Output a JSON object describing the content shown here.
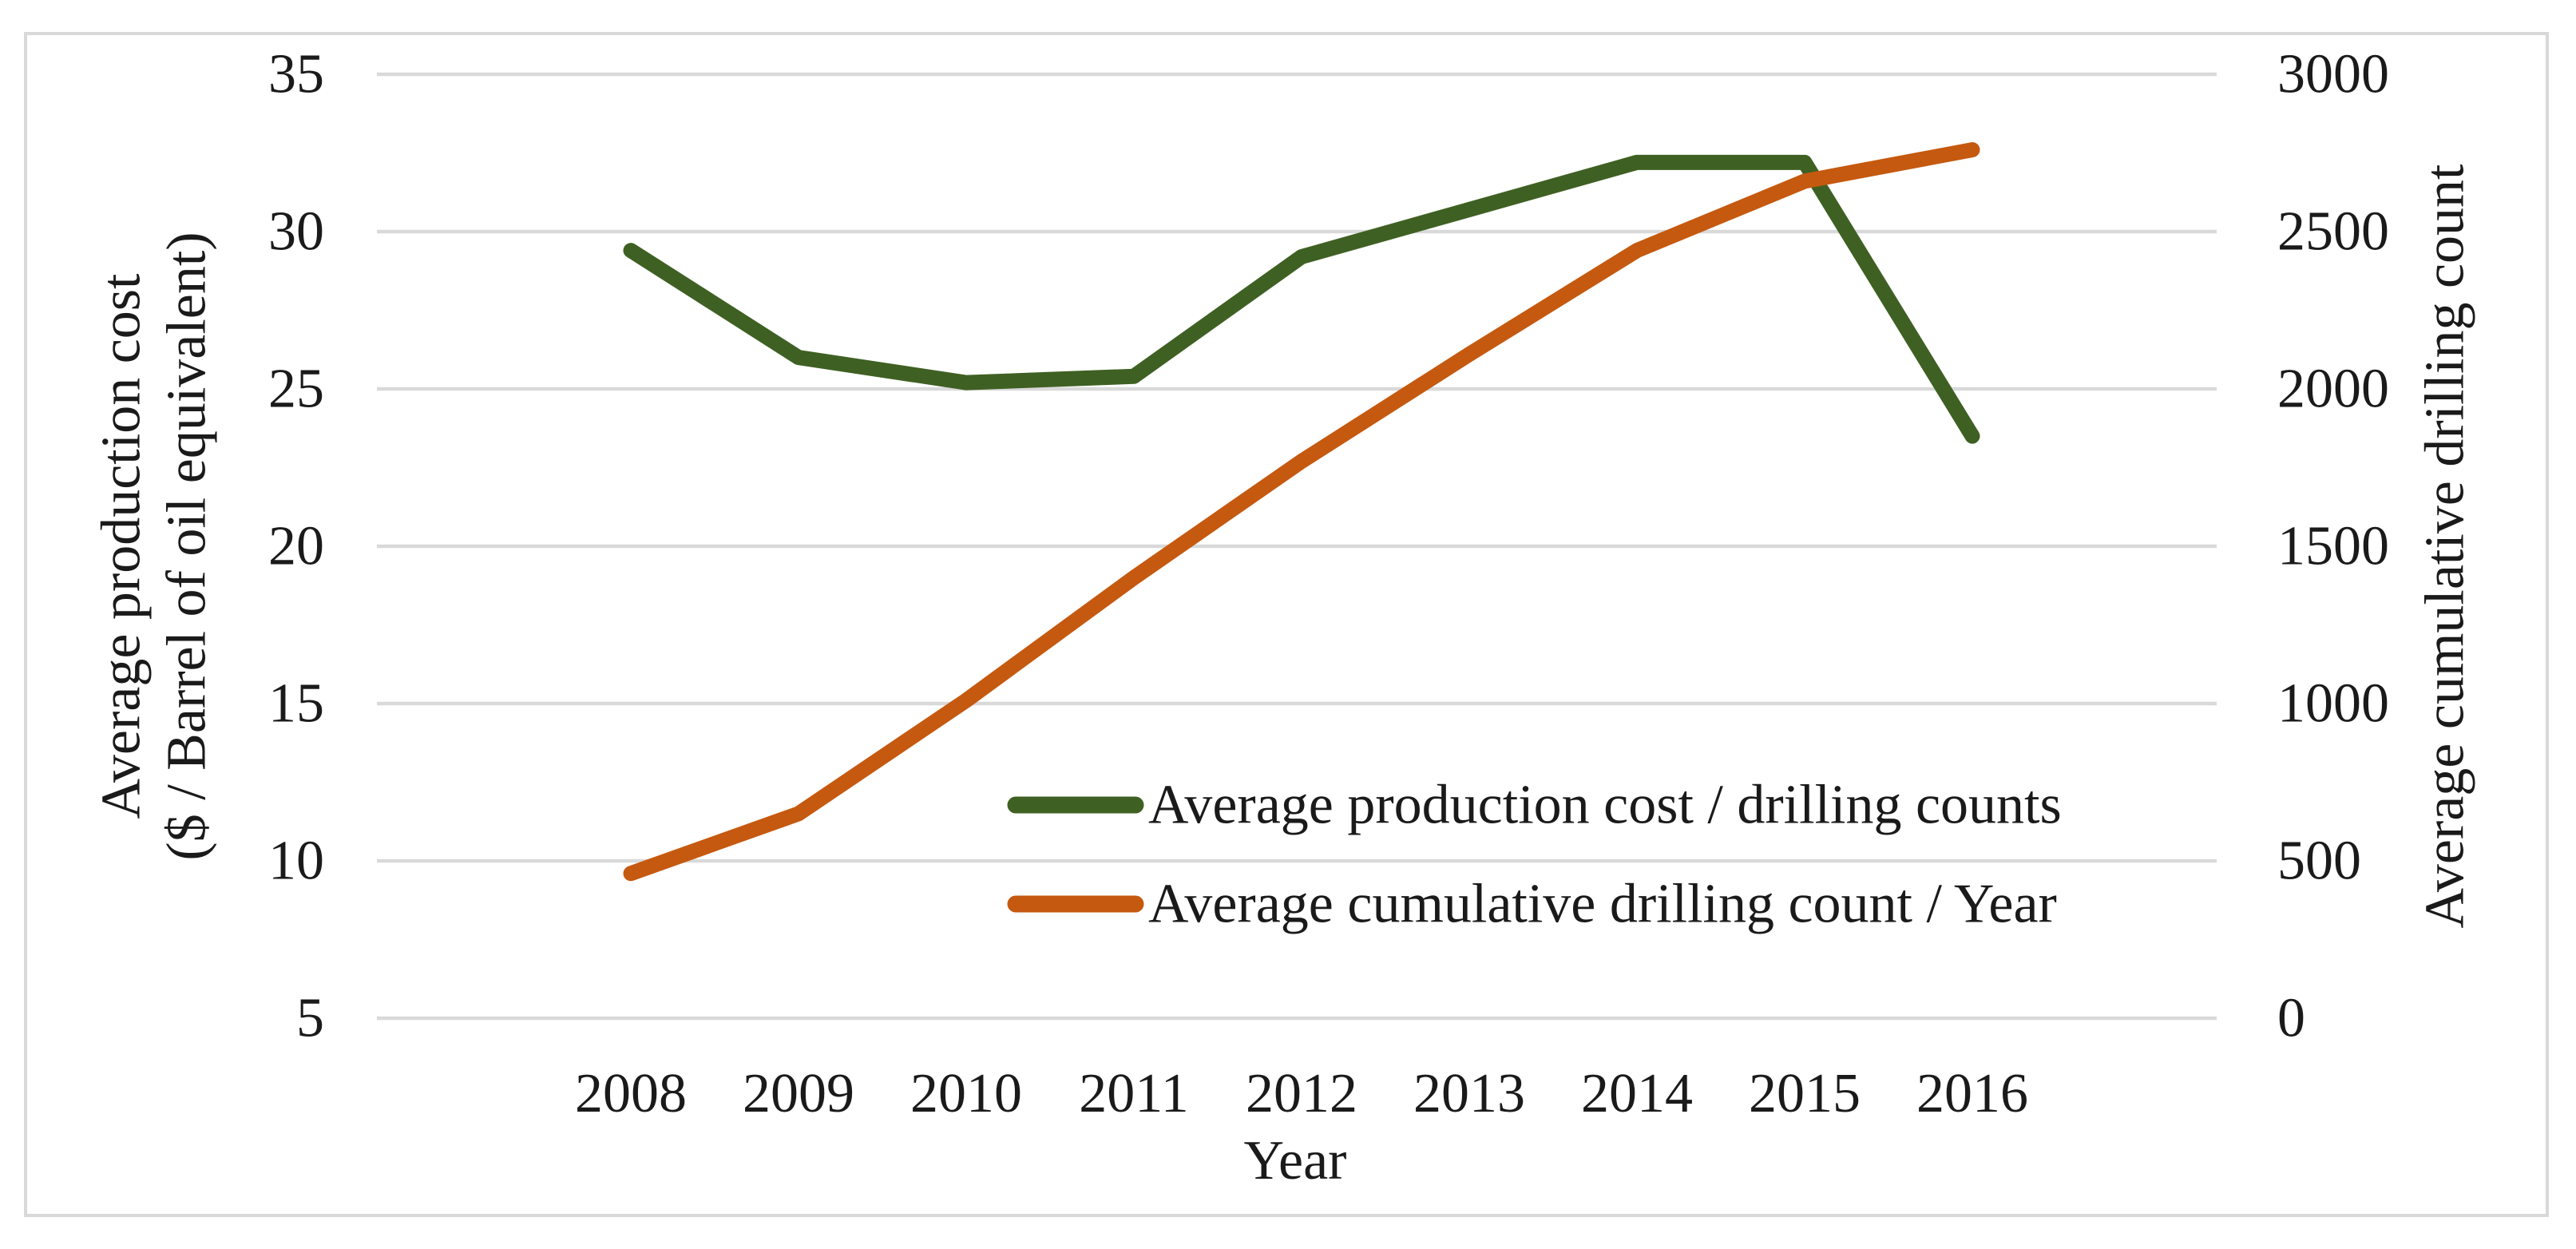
{
  "chart_data": {
    "type": "line",
    "title": "",
    "xlabel": "Year",
    "x": [
      2008,
      2009,
      2010,
      2011,
      2012,
      2013,
      2014,
      2015,
      2016
    ],
    "series": [
      {
        "name": "Average production cost / drilling counts",
        "axis": "left",
        "color": "#3F6023",
        "values": [
          29.4,
          26.0,
          25.2,
          25.4,
          29.2,
          30.7,
          32.2,
          32.2,
          23.5
        ]
      },
      {
        "name": "Average cumulative drilling count / Year",
        "axis": "right",
        "color": "#C5590F",
        "values": [
          460,
          650,
          1010,
          1400,
          1770,
          2110,
          2440,
          2660,
          2760
        ]
      }
    ],
    "left_axis": {
      "title_lines": [
        "Average production cost",
        "($ / Barrel of oil equivalent)"
      ],
      "min": 5,
      "max": 35,
      "tick_step": 5,
      "ticks": [
        35,
        30,
        25,
        20,
        15,
        10,
        5
      ]
    },
    "right_axis": {
      "title": "Average cumulative drilling count",
      "min": 0,
      "max": 3000,
      "tick_step": 500,
      "ticks": [
        3000,
        2500,
        2000,
        1500,
        1000,
        500,
        0
      ]
    },
    "grid": true,
    "legend_position": "inside-bottom-center",
    "colors": {
      "gridline": "#D9D9D9",
      "border": "#D9D9D9",
      "text": "#1A1A1A",
      "background": "#FFFFFF"
    }
  }
}
